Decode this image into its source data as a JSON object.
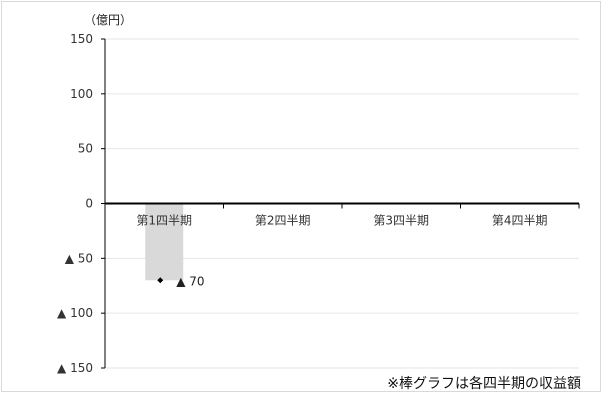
{
  "chart_data": {
    "type": "bar",
    "unit_label": "（億円）",
    "categories": [
      "第1四半期",
      "第2四半期",
      "第3四半期",
      "第4四半期"
    ],
    "values": [
      -70,
      null,
      null,
      null
    ],
    "markers": [
      -70,
      null,
      null,
      null
    ],
    "data_labels": [
      "▲ 70",
      "",
      "",
      ""
    ],
    "ylim": [
      -150,
      150
    ],
    "yticks": [
      150,
      100,
      50,
      0,
      -50,
      -100,
      -150
    ],
    "ytick_labels": [
      "150",
      "100",
      "50",
      "0",
      "▲ 50",
      "▲ 100",
      "▲ 150"
    ],
    "grid": true,
    "legend": "none",
    "footnote": "※棒グラフは各四半期の収益額",
    "colors": {
      "bar": "#d9d9d9",
      "marker": "#000000",
      "grid": "#e6e6e6",
      "axis": "#000000"
    }
  }
}
